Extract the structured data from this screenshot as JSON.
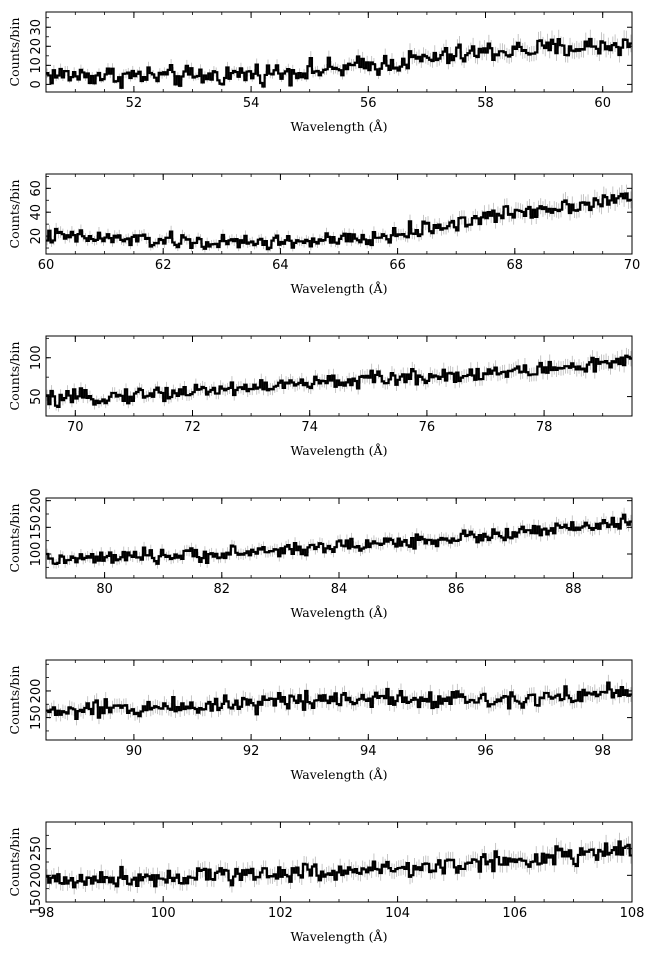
{
  "chart_data": [
    {
      "type": "line",
      "xlabel": "Wavelength (Å)",
      "ylabel": "Counts/bin",
      "xlim": [
        50.5,
        60.5
      ],
      "ylim": [
        -4,
        38
      ],
      "xticks": [
        52,
        54,
        56,
        58,
        60
      ],
      "xtick_labels": [
        "52",
        "54",
        "56",
        "58",
        "60"
      ],
      "yticks": [
        0,
        10,
        20,
        30
      ],
      "ytick_labels": [
        "0",
        "10",
        "20",
        "30"
      ],
      "y_trend": [
        {
          "x": 50.5,
          "y": 5
        },
        {
          "x": 53,
          "y": 4
        },
        {
          "x": 55.5,
          "y": 8
        },
        {
          "x": 58,
          "y": 17
        },
        {
          "x": 60.5,
          "y": 21
        }
      ],
      "noise_amplitude": 5,
      "series": [
        {
          "values": [],
          "style": "step histogram with error bars"
        }
      ]
    },
    {
      "type": "line",
      "xlabel": "Wavelength (Å)",
      "ylabel": "Counts/bin",
      "xlim": [
        60,
        70
      ],
      "ylim": [
        5,
        72
      ],
      "xticks": [
        60,
        62,
        64,
        66,
        68,
        70
      ],
      "xtick_labels": [
        "60",
        "62",
        "64",
        "66",
        "68",
        "70"
      ],
      "yticks": [
        20,
        40,
        60
      ],
      "ytick_labels": [
        "20",
        "40",
        "60"
      ],
      "y_trend": [
        {
          "x": 60,
          "y": 20
        },
        {
          "x": 63,
          "y": 14
        },
        {
          "x": 65.5,
          "y": 17
        },
        {
          "x": 68,
          "y": 40
        },
        {
          "x": 70,
          "y": 52
        }
      ],
      "noise_amplitude": 6,
      "series": [
        {
          "values": [],
          "style": "step histogram with error bars"
        }
      ]
    },
    {
      "type": "line",
      "xlabel": "Wavelength (Å)",
      "ylabel": "Counts/bin",
      "xlim": [
        69.5,
        79.5
      ],
      "ylim": [
        25,
        128
      ],
      "xticks": [
        70,
        72,
        74,
        76,
        78
      ],
      "xtick_labels": [
        "70",
        "72",
        "74",
        "76",
        "78"
      ],
      "yticks": [
        50,
        100
      ],
      "ytick_labels": [
        "50",
        "100"
      ],
      "y_trend": [
        {
          "x": 69.5,
          "y": 45
        },
        {
          "x": 72,
          "y": 57
        },
        {
          "x": 75,
          "y": 72
        },
        {
          "x": 77.5,
          "y": 82
        },
        {
          "x": 79.5,
          "y": 95
        }
      ],
      "noise_amplitude": 9,
      "series": [
        {
          "values": [],
          "style": "step histogram with error bars"
        }
      ]
    },
    {
      "type": "line",
      "xlabel": "Wavelength (Å)",
      "ylabel": "Counts/bin",
      "xlim": [
        79,
        89
      ],
      "ylim": [
        55,
        205
      ],
      "xticks": [
        80,
        82,
        84,
        86,
        88
      ],
      "xtick_labels": [
        "80",
        "82",
        "84",
        "86",
        "88"
      ],
      "yticks": [
        100,
        150,
        200
      ],
      "ytick_labels": [
        "100",
        "150",
        "200"
      ],
      "y_trend": [
        {
          "x": 79,
          "y": 88
        },
        {
          "x": 82,
          "y": 100
        },
        {
          "x": 85,
          "y": 122
        },
        {
          "x": 87,
          "y": 138
        },
        {
          "x": 89,
          "y": 160
        }
      ],
      "noise_amplitude": 12,
      "series": [
        {
          "values": [],
          "style": "step histogram with error bars"
        }
      ]
    },
    {
      "type": "line",
      "xlabel": "Wavelength (Å)",
      "ylabel": "Counts/bin",
      "xlim": [
        88.5,
        98.5
      ],
      "ylim": [
        108,
        258
      ],
      "xticks": [
        90,
        92,
        94,
        96,
        98
      ],
      "xtick_labels": [
        "90",
        "92",
        "94",
        "96",
        "98"
      ],
      "yticks": [
        150,
        200
      ],
      "ytick_labels": [
        "150",
        "200"
      ],
      "y_trend": [
        {
          "x": 88.5,
          "y": 160
        },
        {
          "x": 91,
          "y": 172
        },
        {
          "x": 93.5,
          "y": 188
        },
        {
          "x": 96,
          "y": 184
        },
        {
          "x": 98.5,
          "y": 198
        }
      ],
      "noise_amplitude": 16,
      "series": [
        {
          "values": [],
          "style": "step histogram with error bars"
        }
      ]
    },
    {
      "type": "line",
      "xlabel": "Wavelength (Å)",
      "ylabel": "Counts/bin",
      "xlim": [
        98,
        108
      ],
      "ylim": [
        150,
        300
      ],
      "xticks": [
        98,
        100,
        102,
        104,
        106,
        108
      ],
      "xtick_labels": [
        "98",
        "100",
        "102",
        "104",
        "106",
        "108"
      ],
      "yticks": [
        150,
        200,
        250
      ],
      "ytick_labels": [
        "150",
        "200",
        "250"
      ],
      "y_trend": [
        {
          "x": 98,
          "y": 190
        },
        {
          "x": 100,
          "y": 198
        },
        {
          "x": 102,
          "y": 205
        },
        {
          "x": 104,
          "y": 212
        },
        {
          "x": 106,
          "y": 228
        },
        {
          "x": 108,
          "y": 248
        }
      ],
      "noise_amplitude": 16,
      "series": [
        {
          "values": [],
          "style": "step histogram with error bars"
        }
      ]
    }
  ]
}
